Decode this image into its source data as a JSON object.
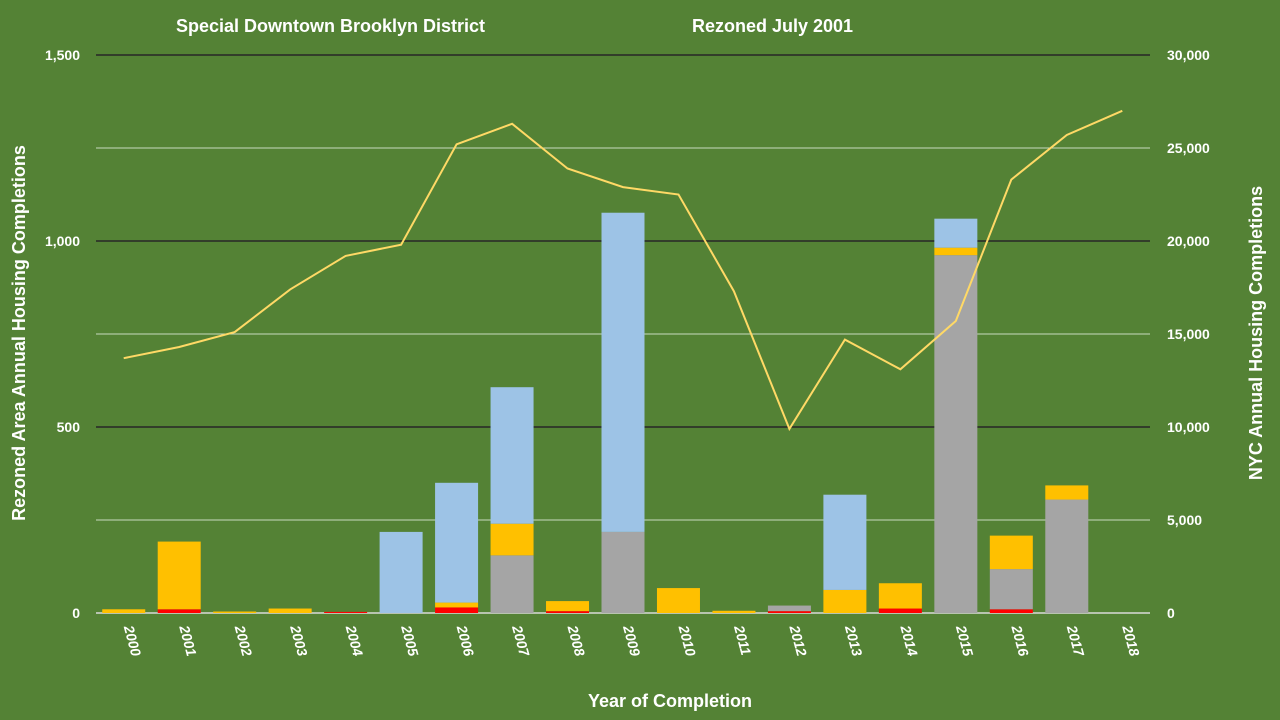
{
  "chart_data": {
    "type": "bar",
    "title_left": "Special Downtown Brooklyn District",
    "title_right": "Rezoned July 2001",
    "xlabel": "Year of Completion",
    "ylabel": "Rezoned Area Annual  Housing Completions",
    "y2label": "NYC  Annual Housing Completions",
    "ylim": [
      0,
      1500
    ],
    "y2lim": [
      0,
      30000
    ],
    "y_ticks": [
      "0",
      "500",
      "1,000",
      "1,500"
    ],
    "y2_ticks": [
      "0",
      "5,000",
      "10,000",
      "15,000",
      "20,000",
      "25,000",
      "30,000"
    ],
    "grid": true,
    "categories": [
      "2000",
      "2001",
      "2002",
      "2003",
      "2004",
      "2005",
      "2006",
      "2007",
      "2008",
      "2009",
      "2010",
      "2011",
      "2012",
      "2013",
      "2014",
      "2015",
      "2016",
      "2017",
      "2018"
    ],
    "stacked_series": [
      {
        "color": "#ff0000",
        "values": [
          0,
          10,
          0,
          0,
          3,
          0,
          15,
          0,
          5,
          0,
          0,
          0,
          5,
          0,
          12,
          0,
          10,
          0,
          0
        ]
      },
      {
        "color": "#a5a5a5",
        "values": [
          0,
          0,
          0,
          0,
          0,
          0,
          0,
          155,
          0,
          218,
          0,
          0,
          15,
          0,
          0,
          962,
          108,
          305,
          0
        ]
      },
      {
        "color": "#ffc000",
        "values": [
          10,
          182,
          4,
          12,
          0,
          0,
          13,
          85,
          27,
          0,
          67,
          6,
          0,
          62,
          68,
          20,
          90,
          38,
          0
        ]
      },
      {
        "color": "#9dc3e6",
        "values": [
          0,
          0,
          0,
          0,
          0,
          218,
          322,
          367,
          0,
          858,
          0,
          0,
          0,
          256,
          0,
          78,
          0,
          0,
          0
        ]
      }
    ],
    "line_series": {
      "axis": "right",
      "color": "#ffd966",
      "values": [
        13700,
        14300,
        15100,
        17400,
        19200,
        19800,
        25200,
        26300,
        23900,
        22900,
        22500,
        17300,
        9900,
        14700,
        13100,
        15700,
        23300,
        25700,
        27000
      ]
    }
  }
}
